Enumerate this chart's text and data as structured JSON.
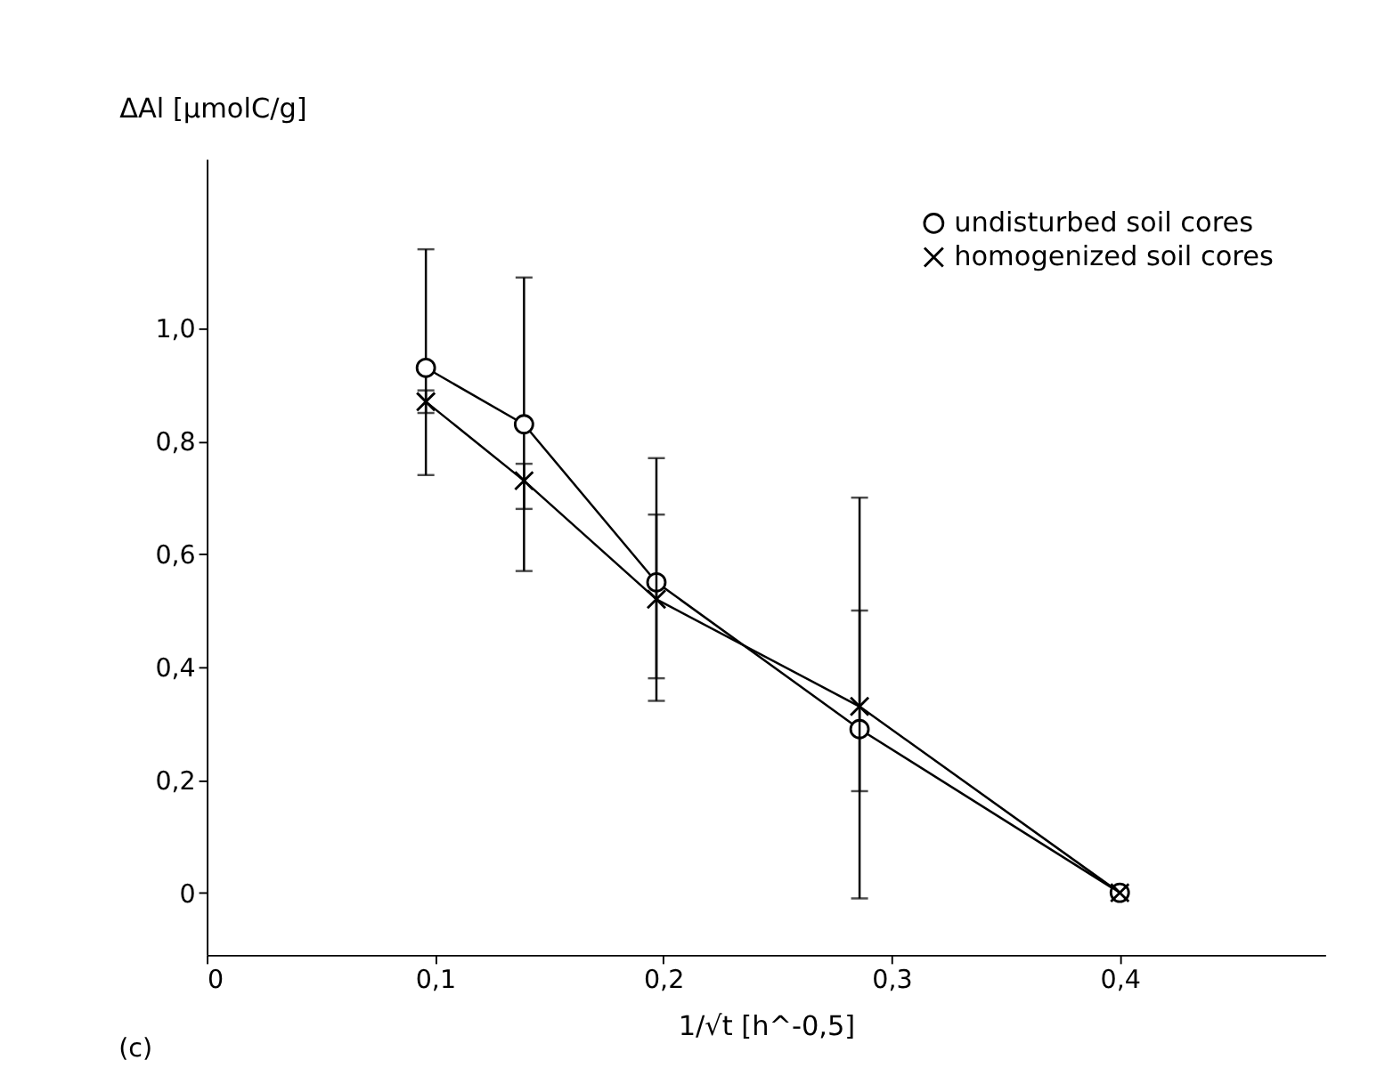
{
  "chart_data": {
    "type": "line",
    "xlabel": "1/√t [h^-0,5]",
    "ylabel": "ΔAl [µmolC/g]",
    "annotations": [
      "(c)"
    ],
    "xlim": [
      0,
      0.49
    ],
    "ylim": [
      -0.11,
      1.3
    ],
    "xticks": [
      {
        "value": 0,
        "label": "0"
      },
      {
        "value": 0.1,
        "label": "0,1"
      },
      {
        "value": 0.2,
        "label": "0,2"
      },
      {
        "value": 0.3,
        "label": "0,3"
      },
      {
        "value": 0.4,
        "label": "0,4"
      }
    ],
    "yticks": [
      {
        "value": 0,
        "label": "0"
      },
      {
        "value": 0.2,
        "label": "0,2"
      },
      {
        "value": 0.4,
        "label": "0,4"
      },
      {
        "value": 0.6,
        "label": "0,6"
      },
      {
        "value": 0.8,
        "label": "0,8"
      },
      {
        "value": 1.0,
        "label": "1,0"
      }
    ],
    "series": [
      {
        "name": "undisturbed soil cores",
        "color": "#000000",
        "marker": "circle",
        "x": [
          0.096,
          0.139,
          0.197,
          0.286,
          0.4
        ],
        "values": [
          0.93,
          0.83,
          0.55,
          0.29,
          0
        ],
        "errors": [
          [
            0.74,
            1.14
          ],
          [
            0.57,
            1.09
          ],
          [
            0.34,
            0.77
          ],
          [
            -0.01,
            0.7
          ],
          null
        ]
      },
      {
        "name": "homogenized soil cores",
        "color": "#000000",
        "marker": "cross",
        "x": [
          0.096,
          0.139,
          0.197,
          0.286,
          0.4
        ],
        "values": [
          0.87,
          0.73,
          0.52,
          0.33,
          0
        ],
        "errors": [
          [
            0.85,
            0.89
          ],
          [
            0.68,
            0.76
          ],
          [
            0.38,
            0.67
          ],
          [
            0.18,
            0.5
          ],
          null
        ]
      }
    ],
    "grid": false,
    "legend": "top right",
    "line_style": "solid"
  }
}
